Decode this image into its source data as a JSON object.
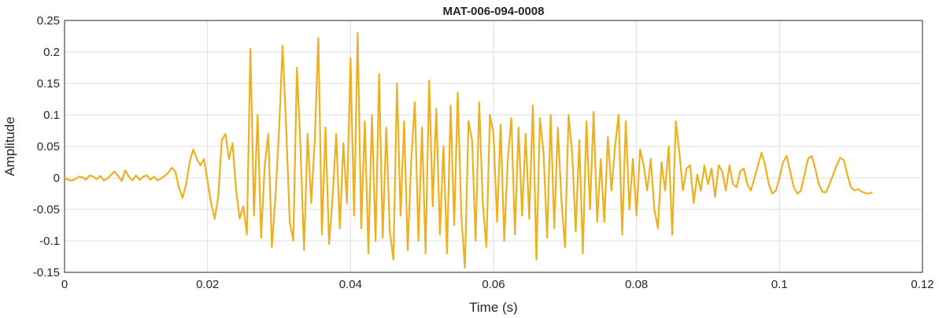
{
  "chart_data": {
    "type": "line",
    "title": "MAT-006-094-0008",
    "xlabel": "Time (s)",
    "ylabel": "Amplitude",
    "x": [
      0,
      0.0005,
      0.001,
      0.0015,
      0.002,
      0.0025,
      0.003,
      0.0035,
      0.004,
      0.0045,
      0.005,
      0.0055,
      0.006,
      0.0065,
      0.007,
      0.0075,
      0.008,
      0.0085,
      0.009,
      0.0095,
      0.01,
      0.0105,
      0.011,
      0.0115,
      0.012,
      0.0125,
      0.013,
      0.0135,
      0.014,
      0.0145,
      0.015,
      0.0155,
      0.016,
      0.0165,
      0.017,
      0.0175,
      0.018,
      0.0185,
      0.019,
      0.0195,
      0.02,
      0.0205,
      0.021,
      0.0215,
      0.022,
      0.0225,
      0.023,
      0.0235,
      0.024,
      0.0245,
      0.025,
      0.0255,
      0.026,
      0.0265,
      0.027,
      0.0275,
      0.028,
      0.0285,
      0.029,
      0.0295,
      0.03,
      0.0305,
      0.031,
      0.0315,
      0.032,
      0.0325,
      0.033,
      0.0335,
      0.034,
      0.0345,
      0.035,
      0.0355,
      0.036,
      0.0365,
      0.037,
      0.0375,
      0.038,
      0.0385,
      0.039,
      0.0395,
      0.04,
      0.0405,
      0.041,
      0.0415,
      0.042,
      0.0425,
      0.043,
      0.0435,
      0.044,
      0.0445,
      0.045,
      0.0455,
      0.046,
      0.0465,
      0.047,
      0.0475,
      0.048,
      0.0485,
      0.049,
      0.0495,
      0.05,
      0.0505,
      0.051,
      0.0515,
      0.052,
      0.0525,
      0.053,
      0.0535,
      0.054,
      0.0545,
      0.055,
      0.0555,
      0.056,
      0.0565,
      0.057,
      0.0575,
      0.058,
      0.0585,
      0.059,
      0.0595,
      0.06,
      0.0605,
      0.061,
      0.0615,
      0.062,
      0.0625,
      0.063,
      0.0635,
      0.064,
      0.0645,
      0.065,
      0.0655,
      0.066,
      0.0665,
      0.067,
      0.0675,
      0.068,
      0.0685,
      0.069,
      0.0695,
      0.07,
      0.0705,
      0.071,
      0.0715,
      0.072,
      0.0725,
      0.073,
      0.0735,
      0.074,
      0.0745,
      0.075,
      0.0755,
      0.076,
      0.0765,
      0.077,
      0.0775,
      0.078,
      0.0785,
      0.079,
      0.0795,
      0.08,
      0.0805,
      0.081,
      0.0815,
      0.082,
      0.0825,
      0.083,
      0.0835,
      0.084,
      0.0845,
      0.085,
      0.0855,
      0.086,
      0.0865,
      0.087,
      0.0875,
      0.088,
      0.0885,
      0.089,
      0.0895,
      0.09,
      0.0905,
      0.091,
      0.0915,
      0.092,
      0.0925,
      0.093,
      0.0935,
      0.094,
      0.0945,
      0.095,
      0.0955,
      0.096,
      0.0965,
      0.097,
      0.0975,
      0.098,
      0.0985,
      0.099,
      0.0995,
      0.1,
      0.1005,
      0.101,
      0.1015,
      0.102,
      0.1025,
      0.103,
      0.1035,
      0.104,
      0.1045,
      0.105,
      0.1055,
      0.106,
      0.1065,
      0.107,
      0.1075,
      0.108,
      0.1085,
      0.109,
      0.1095,
      0.11,
      0.1105,
      0.111,
      0.1115,
      0.112,
      0.1125,
      0.113
    ],
    "series": [
      {
        "color": "#edb120",
        "values": [
          0,
          -0.003,
          -0.004,
          -0.002,
          0.002,
          0.001,
          -0.003,
          0.004,
          0.002,
          -0.002,
          0.003,
          -0.004,
          -0.001,
          0.005,
          0.01,
          0.003,
          -0.005,
          0.012,
          0.002,
          -0.004,
          0.004,
          -0.003,
          0.002,
          0.004,
          -0.003,
          0.002,
          -0.004,
          -0.001,
          0.003,
          0.008,
          0.016,
          0.01,
          -0.015,
          -0.032,
          -0.01,
          0.025,
          0.045,
          0.03,
          0.02,
          0.03,
          -0.005,
          -0.04,
          -0.065,
          -0.03,
          0.06,
          0.07,
          0.03,
          0.055,
          -0.02,
          -0.065,
          -0.045,
          -0.09,
          0.205,
          -0.06,
          0.1,
          -0.095,
          0.02,
          0.07,
          -0.11,
          -0.03,
          0.075,
          0.21,
          0.08,
          -0.07,
          -0.1,
          0.175,
          0.05,
          -0.115,
          0.07,
          -0.04,
          0.06,
          0.222,
          -0.09,
          0.08,
          -0.105,
          -0.03,
          0.07,
          -0.08,
          0.055,
          -0.04,
          0.19,
          -0.06,
          0.23,
          -0.08,
          0.09,
          -0.12,
          0.1,
          -0.1,
          0.165,
          -0.095,
          0.08,
          -0.085,
          -0.13,
          0.15,
          -0.06,
          0.09,
          -0.115,
          0.03,
          0.12,
          -0.1,
          0.08,
          -0.12,
          0.155,
          -0.045,
          0.11,
          -0.09,
          0.05,
          -0.12,
          0.115,
          -0.075,
          0.135,
          -0.06,
          -0.143,
          0.09,
          0.06,
          -0.1,
          0.12,
          -0.04,
          -0.11,
          0.1,
          0.07,
          -0.07,
          0.085,
          -0.1,
          0.03,
          0.095,
          -0.09,
          0.08,
          -0.06,
          0.07,
          -0.065,
          0.115,
          -0.13,
          0.095,
          0.04,
          -0.095,
          0.1,
          -0.08,
          0.08,
          -0.035,
          -0.11,
          0.1,
          0.04,
          -0.085,
          0.06,
          -0.12,
          0.09,
          -0.05,
          0.105,
          -0.07,
          0.03,
          -0.07,
          0.065,
          -0.02,
          0.05,
          0.1,
          -0.09,
          0.09,
          -0.05,
          0.03,
          -0.06,
          0.045,
          0.02,
          -0.02,
          0.03,
          -0.05,
          -0.08,
          0.025,
          -0.02,
          0.05,
          -0.09,
          0.09,
          0.04,
          -0.02,
          0.015,
          0.02,
          -0.04,
          0.005,
          -0.02,
          0.02,
          -0.01,
          0.015,
          -0.03,
          0.02,
          0.01,
          -0.02,
          0.02,
          -0.01,
          -0.015,
          0.01,
          0.015,
          -0.01,
          -0.02,
          0,
          0.02,
          0.04,
          0.02,
          -0.01,
          -0.025,
          -0.02,
          0,
          0.025,
          0.035,
          0.01,
          -0.015,
          -0.025,
          -0.02,
          0.005,
          0.03,
          0.035,
          0.015,
          -0.01,
          -0.022,
          -0.023,
          -0.01,
          0.005,
          0.02,
          0.032,
          0.028,
          0.005,
          -0.015,
          -0.02,
          -0.018,
          -0.022,
          -0.024,
          -0.025,
          -0.023
        ]
      }
    ],
    "xlim": [
      0,
      0.12
    ],
    "xticks": [
      0,
      0.02,
      0.04,
      0.06,
      0.08,
      0.1,
      0.12
    ],
    "ylim": [
      -0.15,
      0.25
    ],
    "yticks": [
      -0.15,
      -0.1,
      -0.05,
      0,
      0.05,
      0.1,
      0.15,
      0.2,
      0.25
    ],
    "grid": true
  }
}
